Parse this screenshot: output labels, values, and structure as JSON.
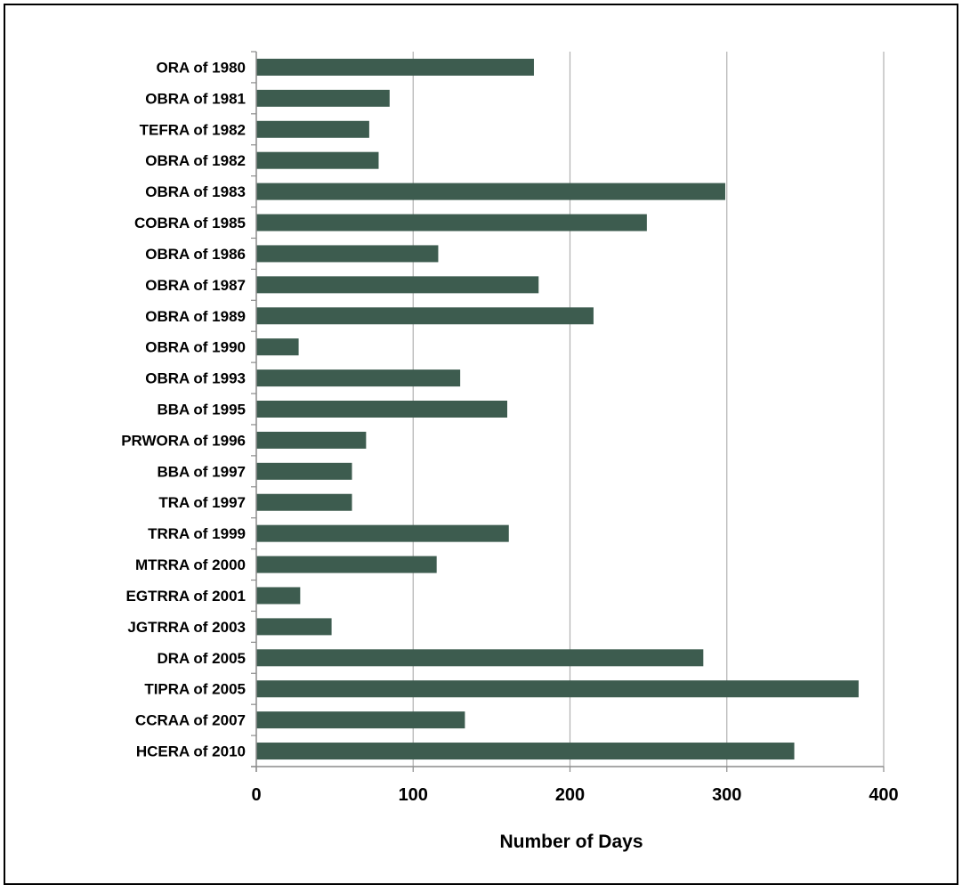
{
  "chart_data": {
    "type": "bar",
    "orientation": "horizontal",
    "title": "",
    "xlabel": "Number of Days",
    "ylabel": "",
    "xlim": [
      0,
      400
    ],
    "xticks": [
      "0",
      "100",
      "200",
      "300",
      "400"
    ],
    "grid": "vertical",
    "bar_color": "#3d5c4f",
    "categories": [
      "ORA of 1980",
      "OBRA of 1981",
      "TEFRA of 1982",
      "OBRA of 1982",
      "OBRA of 1983",
      "COBRA of 1985",
      "OBRA of 1986",
      "OBRA of 1987",
      "OBRA of 1989",
      "OBRA of 1990",
      "OBRA of 1993",
      "BBA of 1995",
      "PRWORA of 1996",
      "BBA of 1997",
      "TRA of 1997",
      "TRRA of 1999",
      "MTRRA of 2000",
      "EGTRRA of 2001",
      "JGTRRA of 2003",
      "DRA of 2005",
      "TIPRA of 2005",
      "CCRAA of 2007",
      "HCERA of 2010"
    ],
    "values": [
      177,
      85,
      72,
      78,
      299,
      249,
      116,
      180,
      215,
      27,
      130,
      160,
      70,
      61,
      61,
      161,
      115,
      28,
      48,
      285,
      384,
      133,
      343
    ]
  }
}
